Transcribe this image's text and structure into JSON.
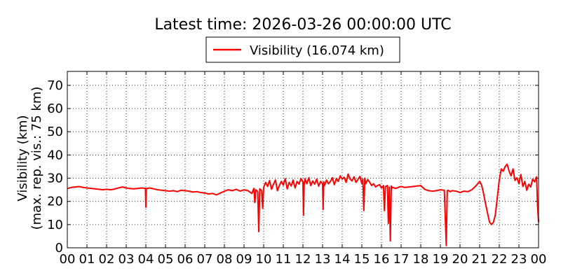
{
  "chart_data": {
    "type": "line",
    "title": "Latest time: 2026-03-26 00:00:00 UTC",
    "ylabel_line1": "Visibility (km)",
    "ylabel_line2": "(max. rep. vis.: 75 km)",
    "xlabel": "",
    "xlim": [
      0,
      24
    ],
    "ylim": [
      0,
      76
    ],
    "grid": true,
    "legend_position": "top-center, outside plot",
    "x_tick_labels": [
      "00",
      "01",
      "02",
      "03",
      "04",
      "05",
      "06",
      "07",
      "08",
      "09",
      "10",
      "11",
      "12",
      "13",
      "14",
      "15",
      "16",
      "17",
      "18",
      "19",
      "20",
      "21",
      "22",
      "23",
      "00"
    ],
    "y_ticks": [
      0,
      10,
      20,
      30,
      40,
      50,
      60,
      70
    ],
    "series": [
      {
        "name": "Visibility (16.074 km)",
        "color": "#ff0000",
        "x_hours": [
          0,
          0.2,
          0.4,
          0.6,
          0.8,
          1,
          1.2,
          1.4,
          1.6,
          1.8,
          2,
          2.2,
          2.4,
          2.6,
          2.8,
          3,
          3.2,
          3.4,
          3.6,
          3.8,
          3.98,
          4.0,
          4.02,
          4.2,
          4.4,
          4.6,
          4.8,
          5,
          5.2,
          5.4,
          5.6,
          5.8,
          6,
          6.2,
          6.4,
          6.6,
          6.8,
          7,
          7.2,
          7.4,
          7.6,
          7.8,
          8,
          8.2,
          8.4,
          8.6,
          8.8,
          9,
          9.2,
          9.4,
          9.5,
          9.55,
          9.6,
          9.7,
          9.75,
          9.8,
          9.9,
          9.95,
          10,
          10.1,
          10.2,
          10.3,
          10.4,
          10.5,
          10.6,
          10.7,
          10.8,
          10.9,
          11,
          11.1,
          11.2,
          11.3,
          11.4,
          11.5,
          11.6,
          11.7,
          11.8,
          11.9,
          12,
          12.03,
          12.06,
          12.1,
          12.2,
          12.3,
          12.4,
          12.5,
          12.6,
          12.7,
          12.8,
          12.9,
          13,
          13.03,
          13.06,
          13.1,
          13.2,
          13.3,
          13.4,
          13.5,
          13.6,
          13.7,
          13.8,
          13.9,
          14,
          14.1,
          14.2,
          14.3,
          14.4,
          14.5,
          14.6,
          14.7,
          14.8,
          14.9,
          15,
          15.05,
          15.1,
          15.15,
          15.2,
          15.3,
          15.4,
          15.5,
          15.6,
          15.7,
          15.8,
          15.9,
          16,
          16.1,
          16.15,
          16.2,
          16.3,
          16.35,
          16.4,
          16.45,
          16.5,
          16.55,
          16.6,
          16.7,
          16.8,
          16.9,
          17,
          17.2,
          17.4,
          17.6,
          17.8,
          18,
          18.2,
          18.4,
          18.6,
          18.8,
          19,
          19.2,
          19.3,
          19.35,
          19.4,
          19.5,
          19.6,
          19.8,
          20,
          20.2,
          20.4,
          20.6,
          20.8,
          21,
          21.1,
          21.2,
          21.3,
          21.4,
          21.5,
          21.6,
          21.7,
          21.8,
          21.9,
          22,
          22.1,
          22.2,
          22.3,
          22.4,
          22.5,
          22.6,
          22.7,
          22.8,
          22.9,
          23,
          23.1,
          23.2,
          23.3,
          23.4,
          23.5,
          23.6,
          23.7,
          23.8,
          23.9,
          23.95,
          24
        ],
        "y_km": [
          25.5,
          26,
          26.2,
          26.4,
          26,
          25.8,
          25.6,
          25.4,
          25.2,
          25,
          25.2,
          25,
          25.3,
          25.8,
          26.2,
          25.8,
          25.5,
          25.4,
          25.6,
          25.8,
          25.6,
          17.5,
          25.5,
          25.8,
          25.4,
          25,
          24.8,
          24.6,
          24.4,
          24.6,
          24.2,
          24.8,
          24.6,
          24.4,
          24,
          24.2,
          23.8,
          23.6,
          23.2,
          23.4,
          22.8,
          23.6,
          24.4,
          25,
          24.6,
          25.2,
          24.4,
          25,
          24.6,
          23.4,
          25.6,
          19.5,
          25,
          24.2,
          7,
          25.4,
          24.6,
          17,
          26,
          28.2,
          26.4,
          29,
          25.2,
          27.4,
          29.2,
          24.6,
          26.8,
          28.6,
          27,
          29.8,
          25.4,
          28.2,
          26.6,
          29.2,
          25.8,
          28.6,
          27.4,
          29.8,
          28.4,
          14,
          27,
          29.8,
          27.6,
          30.2,
          26.8,
          28.8,
          27.4,
          29.6,
          26.6,
          28.6,
          27.6,
          16.5,
          28.4,
          26.8,
          29.2,
          27.6,
          28.6,
          30.2,
          27.2,
          29.8,
          28.6,
          31,
          29.6,
          30.4,
          28.2,
          31.8,
          29.6,
          28.8,
          30.6,
          28.2,
          29.4,
          30.8,
          27.6,
          29.6,
          16,
          30,
          27.6,
          29.4,
          28.2,
          26.8,
          27.6,
          26.2,
          26.8,
          27.2,
          25.8,
          26.8,
          16,
          26.4,
          26.8,
          10.5,
          26.2,
          3,
          26.6,
          25.8,
          26,
          25.6,
          25.8,
          26.2,
          26.4,
          26,
          26.2,
          26.4,
          26.6,
          26.8,
          25.2,
          24.6,
          24.4,
          24.6,
          25,
          24.8,
          1,
          24.6,
          24.8,
          24.2,
          24.6,
          24.4,
          23.8,
          24.4,
          24.2,
          25,
          26.6,
          28.6,
          27,
          23.4,
          19,
          15,
          11.2,
          10,
          11,
          14.2,
          21.8,
          29.2,
          34,
          33,
          35,
          36,
          33,
          31,
          34,
          29,
          30.2,
          27.6,
          31.6,
          26.4,
          28.6,
          24.8,
          27.4,
          26.2,
          29.6,
          28.4,
          30.6,
          18,
          11
        ]
      }
    ]
  }
}
